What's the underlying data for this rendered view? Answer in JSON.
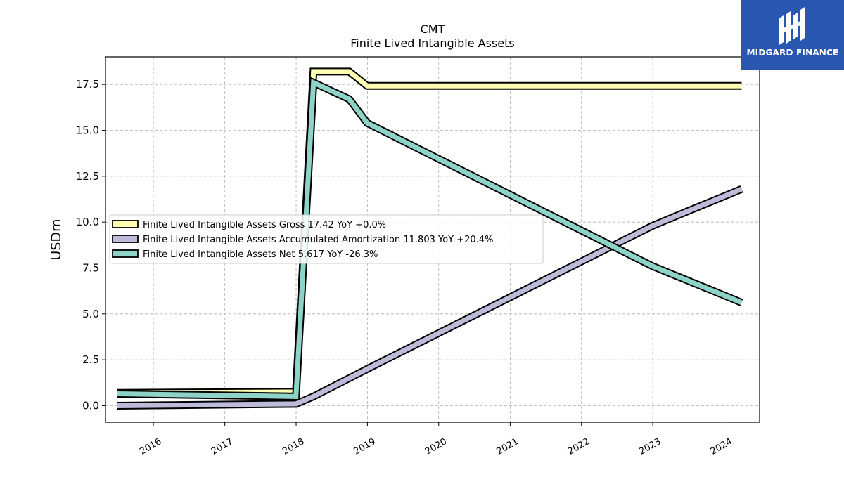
{
  "chart_data": {
    "type": "line",
    "title": "CMT",
    "subtitle": "Finite Lived Intangible Assets",
    "xlabel": "",
    "ylabel": "USDm",
    "ylim": [
      -0.9,
      19.0
    ],
    "xlim": [
      "2015-05-01",
      "2024-07-01"
    ],
    "yticks": [
      0.0,
      2.5,
      5.0,
      7.5,
      10.0,
      12.5,
      15.0,
      17.5
    ],
    "ytick_labels": [
      "0.0",
      "2.5",
      "5.0",
      "7.5",
      "10.0",
      "12.5",
      "15.0",
      "17.5"
    ],
    "xtick_labels": [
      "2016",
      "2017",
      "2018",
      "2019",
      "2020",
      "2021",
      "2022",
      "2023",
      "2024"
    ],
    "grid": true,
    "legend_position": "center-left",
    "series": [
      {
        "name": "Finite Lived Intangible Assets Gross",
        "legend_label": "Finite Lived Intangible Assets Gross  17.42 YoY +0.0%",
        "color": "#ffffb3",
        "points": [
          {
            "x": "2015-06-30",
            "y": 0.7
          },
          {
            "x": "2017-12-31",
            "y": 0.75
          },
          {
            "x": "2018-03-31",
            "y": 18.2
          },
          {
            "x": "2018-09-30",
            "y": 18.2
          },
          {
            "x": "2018-12-31",
            "y": 17.42
          },
          {
            "x": "2024-03-31",
            "y": 17.42
          }
        ]
      },
      {
        "name": "Finite Lived Intangible Assets Accumulated Amortization",
        "legend_label": "Finite Lived Intangible Assets Accumulated Amortization  11.803 YoY +20.4%",
        "color": "#bebada",
        "points": [
          {
            "x": "2015-06-30",
            "y": 0.0
          },
          {
            "x": "2017-12-31",
            "y": 0.1
          },
          {
            "x": "2018-03-31",
            "y": 0.5
          },
          {
            "x": "2018-12-31",
            "y": 2.0
          },
          {
            "x": "2022-12-31",
            "y": 9.8
          },
          {
            "x": "2023-06-30",
            "y": 10.6
          },
          {
            "x": "2024-03-31",
            "y": 11.803
          }
        ]
      },
      {
        "name": "Finite Lived Intangible Assets Net",
        "legend_label": "Finite Lived Intangible Assets Net  5.617 YoY -26.3%",
        "color": "#8dd3c7",
        "points": [
          {
            "x": "2015-06-30",
            "y": 0.65
          },
          {
            "x": "2017-12-31",
            "y": 0.5
          },
          {
            "x": "2018-03-31",
            "y": 17.6
          },
          {
            "x": "2018-09-30",
            "y": 16.7
          },
          {
            "x": "2018-12-31",
            "y": 15.4
          },
          {
            "x": "2022-12-31",
            "y": 7.6
          },
          {
            "x": "2024-03-31",
            "y": 5.617
          }
        ]
      }
    ]
  },
  "logo": {
    "text": "MIDGARD FINANCE",
    "background": "#2957b0"
  }
}
